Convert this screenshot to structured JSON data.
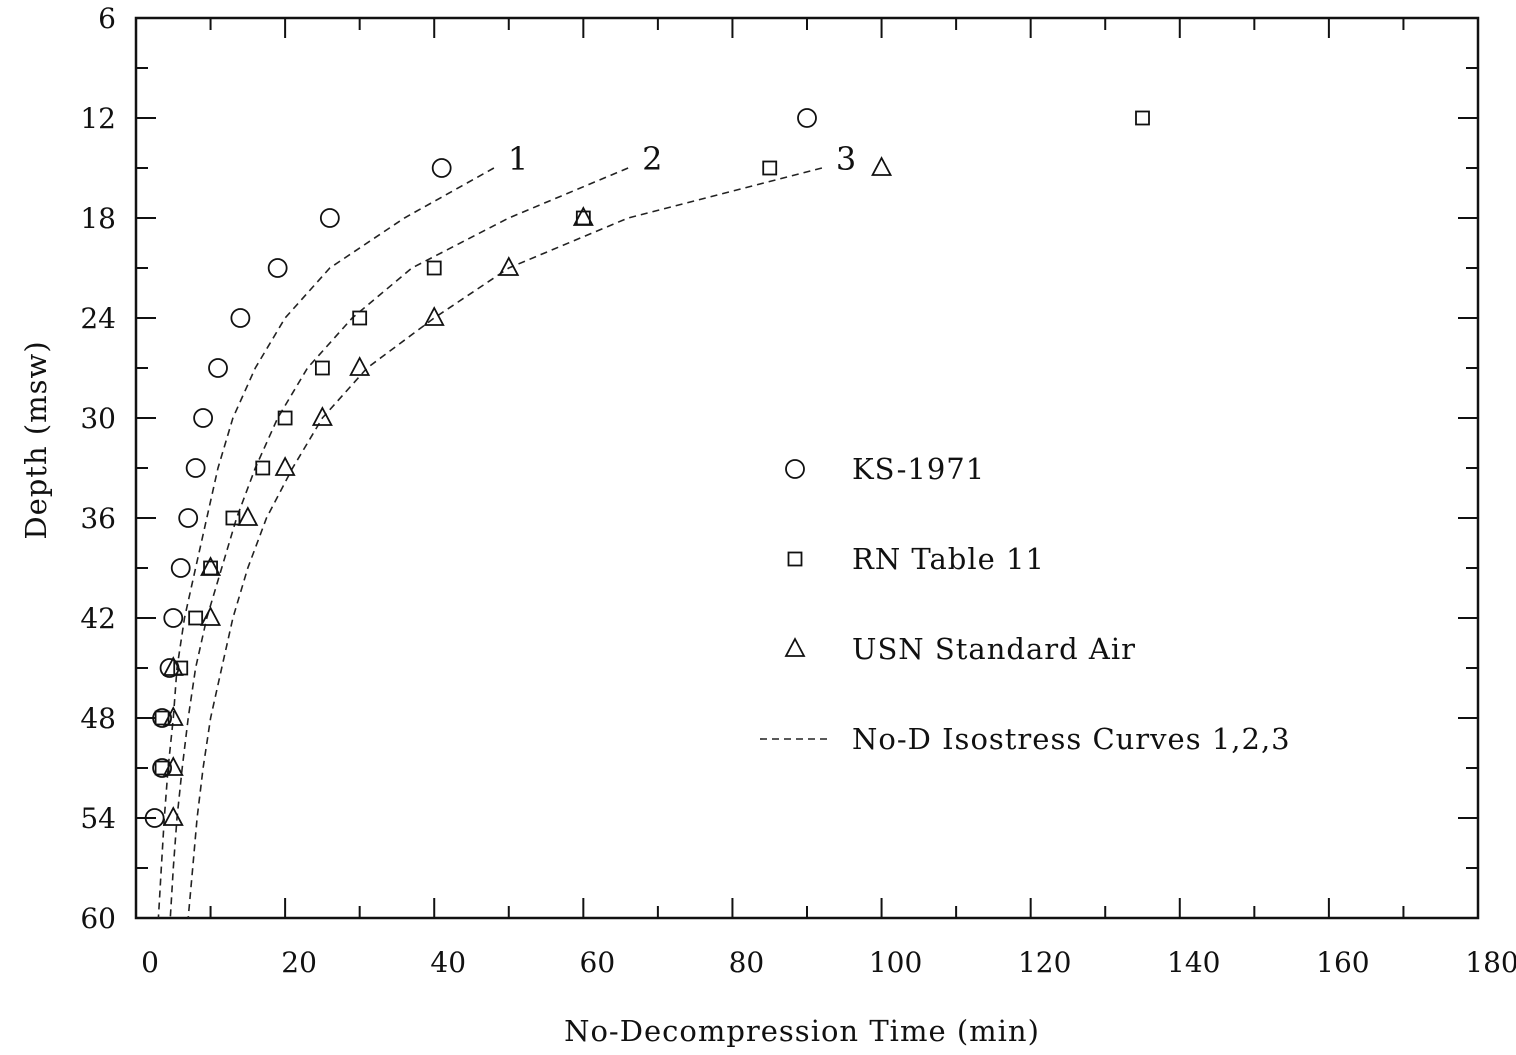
{
  "chart_data": {
    "type": "scatter",
    "title": "",
    "xlabel": "No-Decompression Time (min)",
    "ylabel": "Depth (msw)",
    "xlim": [
      0,
      180
    ],
    "ylim": [
      6,
      60
    ],
    "y_inverted": true,
    "x_ticks": [
      0,
      20,
      40,
      60,
      80,
      100,
      120,
      140,
      160,
      180
    ],
    "y_ticks": [
      6,
      12,
      18,
      24,
      30,
      36,
      42,
      48,
      54,
      60
    ],
    "grid": false,
    "legend_position": "center-right",
    "series": [
      {
        "name": "KS-1971",
        "marker": "circle",
        "points": [
          {
            "x": 90,
            "y": 12
          },
          {
            "x": 41,
            "y": 15
          },
          {
            "x": 26,
            "y": 18
          },
          {
            "x": 19,
            "y": 21
          },
          {
            "x": 14,
            "y": 24
          },
          {
            "x": 11,
            "y": 27
          },
          {
            "x": 9,
            "y": 30
          },
          {
            "x": 8,
            "y": 33
          },
          {
            "x": 7,
            "y": 36
          },
          {
            "x": 6,
            "y": 39
          },
          {
            "x": 5,
            "y": 42
          },
          {
            "x": 4.5,
            "y": 45
          },
          {
            "x": 3.5,
            "y": 48
          },
          {
            "x": 3.5,
            "y": 51
          },
          {
            "x": 2.5,
            "y": 54
          }
        ]
      },
      {
        "name": "RN Table 11",
        "marker": "square",
        "points": [
          {
            "x": 135,
            "y": 12
          },
          {
            "x": 85,
            "y": 15
          },
          {
            "x": 60,
            "y": 18
          },
          {
            "x": 40,
            "y": 21
          },
          {
            "x": 30,
            "y": 24
          },
          {
            "x": 25,
            "y": 27
          },
          {
            "x": 20,
            "y": 30
          },
          {
            "x": 17,
            "y": 33
          },
          {
            "x": 13,
            "y": 36
          },
          {
            "x": 10,
            "y": 39
          },
          {
            "x": 8,
            "y": 42
          },
          {
            "x": 6,
            "y": 45
          },
          {
            "x": 3.5,
            "y": 48
          },
          {
            "x": 3.5,
            "y": 51
          }
        ]
      },
      {
        "name": "USN Standard Air",
        "marker": "triangle",
        "points": [
          {
            "x": 100,
            "y": 15
          },
          {
            "x": 60,
            "y": 18
          },
          {
            "x": 50,
            "y": 21
          },
          {
            "x": 40,
            "y": 24
          },
          {
            "x": 30,
            "y": 27
          },
          {
            "x": 25,
            "y": 30
          },
          {
            "x": 20,
            "y": 33
          },
          {
            "x": 15,
            "y": 36
          },
          {
            "x": 10,
            "y": 39
          },
          {
            "x": 10,
            "y": 42
          },
          {
            "x": 5,
            "y": 45
          },
          {
            "x": 5,
            "y": 48
          },
          {
            "x": 5,
            "y": 51
          },
          {
            "x": 5,
            "y": 54
          }
        ]
      }
    ],
    "curves": [
      {
        "name": "1",
        "style": "dashed",
        "points": [
          {
            "x": 48,
            "y": 15
          },
          {
            "x": 36,
            "y": 18
          },
          {
            "x": 26,
            "y": 21
          },
          {
            "x": 20,
            "y": 24
          },
          {
            "x": 16,
            "y": 27
          },
          {
            "x": 13,
            "y": 30
          },
          {
            "x": 11,
            "y": 33
          },
          {
            "x": 9.5,
            "y": 36
          },
          {
            "x": 8,
            "y": 39
          },
          {
            "x": 6.5,
            "y": 42
          },
          {
            "x": 5.5,
            "y": 45
          },
          {
            "x": 5,
            "y": 48
          },
          {
            "x": 4.3,
            "y": 51
          },
          {
            "x": 3.8,
            "y": 54
          },
          {
            "x": 3.4,
            "y": 57
          },
          {
            "x": 3,
            "y": 60
          }
        ]
      },
      {
        "name": "2",
        "style": "dashed",
        "points": [
          {
            "x": 66,
            "y": 15
          },
          {
            "x": 50,
            "y": 18
          },
          {
            "x": 37,
            "y": 21
          },
          {
            "x": 29,
            "y": 24
          },
          {
            "x": 23,
            "y": 27
          },
          {
            "x": 19,
            "y": 30
          },
          {
            "x": 16,
            "y": 33
          },
          {
            "x": 13.5,
            "y": 36
          },
          {
            "x": 11.5,
            "y": 39
          },
          {
            "x": 9.5,
            "y": 42
          },
          {
            "x": 8,
            "y": 45
          },
          {
            "x": 7,
            "y": 48
          },
          {
            "x": 6.2,
            "y": 51
          },
          {
            "x": 5.5,
            "y": 54
          },
          {
            "x": 5,
            "y": 57
          },
          {
            "x": 4.6,
            "y": 60
          }
        ]
      },
      {
        "name": "3",
        "style": "dashed",
        "points": [
          {
            "x": 92,
            "y": 15
          },
          {
            "x": 66,
            "y": 18
          },
          {
            "x": 50,
            "y": 21
          },
          {
            "x": 40,
            "y": 24
          },
          {
            "x": 31,
            "y": 27
          },
          {
            "x": 25,
            "y": 30
          },
          {
            "x": 21,
            "y": 33
          },
          {
            "x": 17.5,
            "y": 36
          },
          {
            "x": 15,
            "y": 39
          },
          {
            "x": 13,
            "y": 42
          },
          {
            "x": 11.5,
            "y": 45
          },
          {
            "x": 10,
            "y": 48
          },
          {
            "x": 9,
            "y": 51
          },
          {
            "x": 8.2,
            "y": 54
          },
          {
            "x": 7.6,
            "y": 57
          },
          {
            "x": 7,
            "y": 60
          }
        ]
      }
    ],
    "legend": [
      {
        "marker": "circle",
        "label": "KS-1971"
      },
      {
        "marker": "square",
        "label": "RN Table 11"
      },
      {
        "marker": "triangle",
        "label": "USN Standard Air"
      },
      {
        "marker": "dashed-line",
        "label": "No-D Isostress Curves 1,2,3"
      }
    ]
  }
}
